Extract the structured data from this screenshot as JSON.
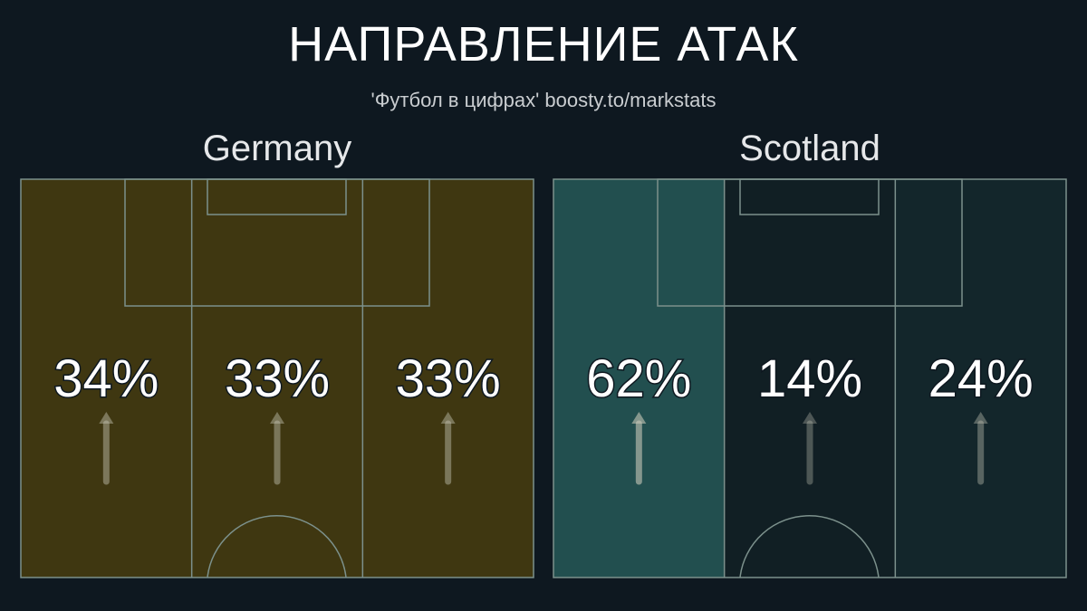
{
  "title": "НАПРАВЛЕНИЕ АТАК",
  "subtitle": "'Футбол в цифрах' boosty.to/markstats",
  "chart_data": [
    {
      "type": "pitch-lanes",
      "team": "Germany",
      "lanes": [
        "left",
        "center",
        "right"
      ],
      "values": [
        34,
        33,
        33
      ],
      "labels": [
        "34%",
        "33%",
        "33%"
      ],
      "lane_colors": [
        "#3f3711",
        "#3f3711",
        "#3f3711"
      ]
    },
    {
      "type": "pitch-lanes",
      "team": "Scotland",
      "lanes": [
        "left",
        "center",
        "right"
      ],
      "values": [
        62,
        14,
        24
      ],
      "labels": [
        "62%",
        "14%",
        "24%"
      ],
      "lane_colors": [
        "#224f4f",
        "#111f24",
        "#13262b"
      ]
    }
  ],
  "colors": {
    "background": "#0e1820",
    "pitch_lines": "#7c918c"
  }
}
